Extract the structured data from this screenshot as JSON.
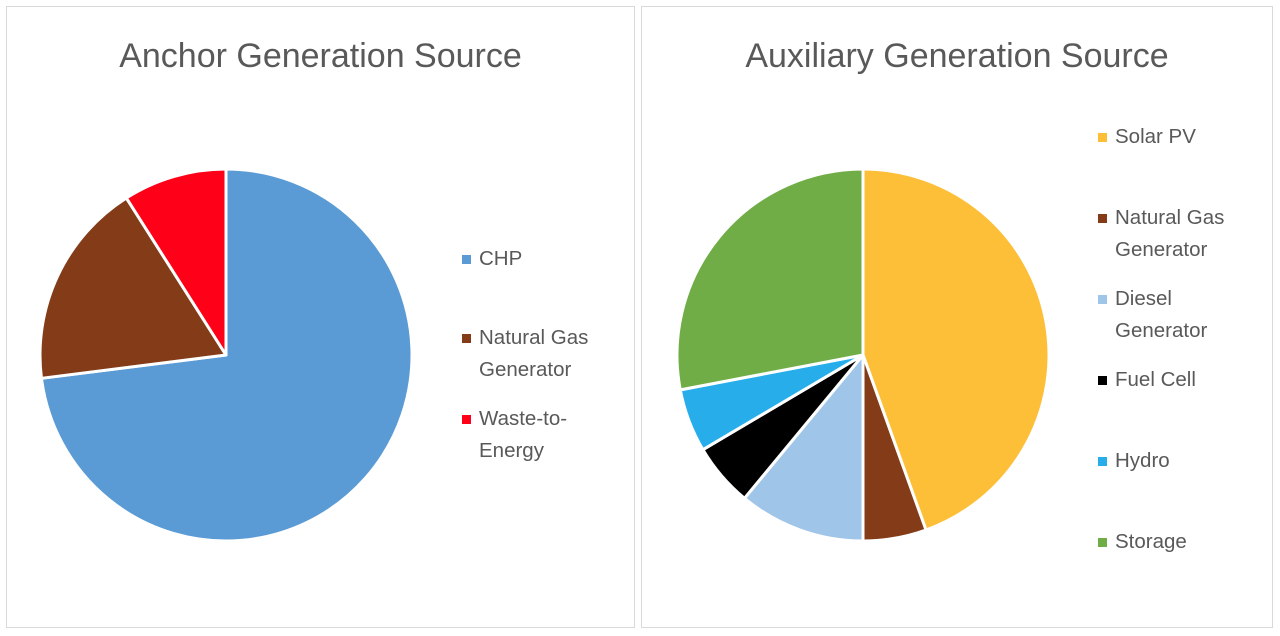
{
  "chart_data": [
    {
      "type": "pie",
      "title": "Anchor Generation Source",
      "legend": "right",
      "categories": [
        "CHP",
        "Natural Gas Generator",
        "Waste-to-Energy"
      ],
      "values": [
        73,
        18,
        9
      ],
      "colors": [
        "#5b9bd5",
        "#843c18",
        "#ff0019"
      ]
    },
    {
      "type": "pie",
      "title": "Auxiliary Generation Source",
      "legend": "right",
      "categories": [
        "Solar PV",
        "Natural Gas Generator",
        "Diesel Generator",
        "Fuel Cell",
        "Hydro",
        "Storage"
      ],
      "values": [
        44.5,
        5.5,
        11,
        5.5,
        5.5,
        28
      ],
      "colors": [
        "#fdbf38",
        "#843c18",
        "#9fc5e8",
        "#000000",
        "#27aeea",
        "#70ad47"
      ]
    }
  ]
}
